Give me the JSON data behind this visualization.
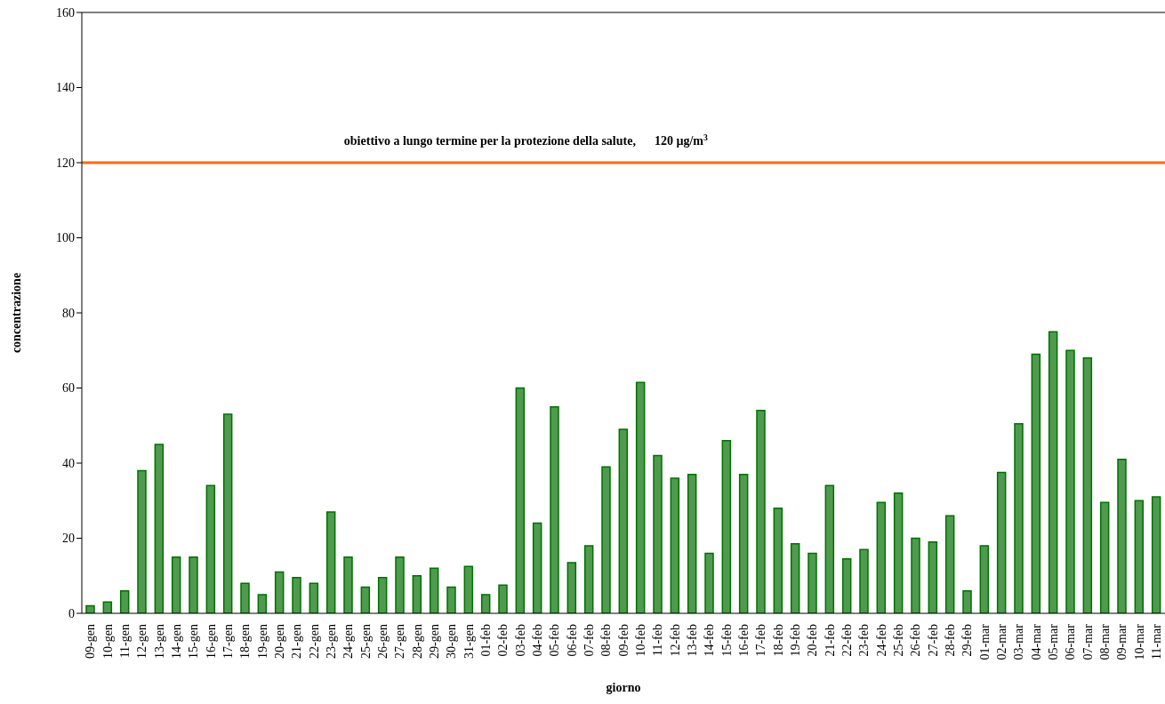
{
  "chart_data": {
    "type": "bar",
    "xlabel": "giorno",
    "ylabel": "concentrazione",
    "categories": [
      "09-gen",
      "10-gen",
      "11-gen",
      "12-gen",
      "13-gen",
      "14-gen",
      "15-gen",
      "16-gen",
      "17-gen",
      "18-gen",
      "19-gen",
      "20-gen",
      "21-gen",
      "22-gen",
      "23-gen",
      "24-gen",
      "25-gen",
      "26-gen",
      "27-gen",
      "28-gen",
      "29-gen",
      "30-gen",
      "31-gen",
      "01-feb",
      "02-feb",
      "03-feb",
      "04-feb",
      "05-feb",
      "06-feb",
      "07-feb",
      "08-feb",
      "09-feb",
      "10-feb",
      "11-feb",
      "12-feb",
      "13-feb",
      "14-feb",
      "15-feb",
      "16-feb",
      "17-feb",
      "18-feb",
      "19-feb",
      "20-feb",
      "21-feb",
      "22-feb",
      "23-feb",
      "24-feb",
      "25-feb",
      "26-feb",
      "27-feb",
      "28-feb",
      "29-feb",
      "01-mar",
      "02-mar",
      "03-mar",
      "04-mar",
      "05-mar",
      "06-mar",
      "07-mar",
      "08-mar",
      "09-mar",
      "10-mar",
      "11-mar"
    ],
    "values": [
      2,
      3,
      6,
      38,
      45,
      15,
      15,
      34,
      53,
      8,
      5,
      11,
      9.5,
      8,
      27,
      15,
      7,
      9.5,
      15,
      10,
      12,
      7,
      12.5,
      5,
      7.5,
      60,
      24,
      55,
      13.5,
      18,
      39,
      49,
      61.5,
      42,
      36,
      37,
      16,
      46,
      37,
      54,
      28,
      18.5,
      16,
      34,
      14.5,
      17,
      29.5,
      32,
      20,
      19,
      26,
      6,
      18,
      37.5,
      50.5,
      69,
      75,
      70,
      68,
      29.5,
      41,
      30,
      31
    ],
    "color": "#4f9a4f",
    "ylim": [
      0,
      160
    ],
    "yticks": [
      0,
      20,
      40,
      60,
      80,
      100,
      120,
      140,
      160
    ],
    "grid": false,
    "legend": false,
    "ref_lines": [
      {
        "axis": "y",
        "value": 120,
        "label": "obiettivo a lungo termine per la protezione della salute,      120 µg/m$^{3}$",
        "color": "#ff6a13"
      }
    ]
  }
}
